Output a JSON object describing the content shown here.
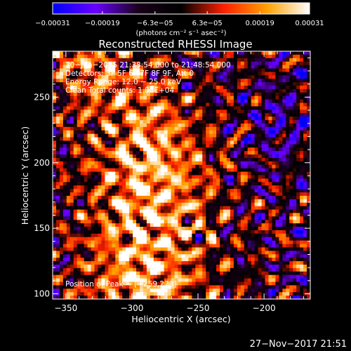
{
  "chart_data": {
    "type": "heatmap",
    "title": "Reconstructed RHESSI Image",
    "xlabel": "Heliocentric X (arcsec)",
    "ylabel": "Heliocentric Y (arcsec)",
    "xlim": [
      -360,
      -165
    ],
    "ylim": [
      96,
      285
    ],
    "x_ticks": [
      -350,
      -300,
      -250,
      -200
    ],
    "x_tick_labels": [
      "−350",
      "−300",
      "−250",
      "−200"
    ],
    "y_ticks": [
      100,
      150,
      200,
      250
    ],
    "y_tick_labels": [
      "100",
      "150",
      "200",
      "250"
    ],
    "colorbar": {
      "units_label": "(photons cm⁻² s⁻¹ asec⁻²)",
      "range": [
        -0.00031,
        0.00031
      ],
      "tick_values": [
        -0.00031,
        -0.00019,
        -6.3e-05,
        6.3e-05,
        0.00019,
        0.00031
      ],
      "tick_labels": [
        "−0.00031",
        "−0.00019",
        "−6.3e−05",
        "6.3e−05",
        "0.00019",
        "0.00031"
      ],
      "colors": [
        "#0000ff",
        "#6a00ff",
        "#1a001a",
        "#000000",
        "#ff2000",
        "#ffa000",
        "#ffffff"
      ]
    },
    "annotations": [
      "20−Jun−2015 21:38:54.000 to 21:48:54.000",
      "Detectors: 3F 5F 6F 7F 8F 9F, Att 0",
      "Energy Range: 12.0 − 25.0 keV",
      "Clean     Total counts: 1.80E+04"
    ],
    "peak_label": "Position of Peak = [−259,273]",
    "peak_position": [
      -259,
      273
    ]
  },
  "footer": {
    "date": "27−Nov−2017 21:51"
  }
}
